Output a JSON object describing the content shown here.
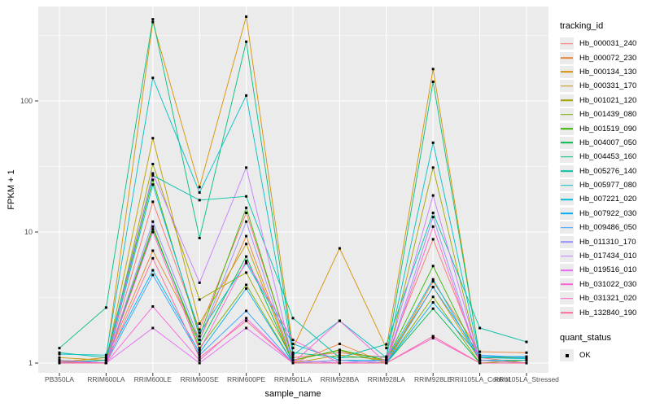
{
  "chart_data": {
    "type": "line",
    "title": "",
    "xlabel": "sample_name",
    "ylabel": "FPKM + 1",
    "y_scale": "log10",
    "ylim": [
      0.93,
      500
    ],
    "y_ticks": [
      1,
      10,
      100
    ],
    "y_minor_ticks": [
      3.162,
      31.62,
      316.2
    ],
    "grid": true,
    "panel_bg": "#EBEBEB",
    "grid_color": "#FFFFFF",
    "tick_color": "#333333",
    "axis_text_color": "#4D4D4D",
    "point_color": "#000000",
    "x_categories": [
      "PB350LA",
      "RRIM600LA",
      "RRIM600LE",
      "RRIM600SE",
      "RRIM600PE",
      "RRIM901LA",
      "RRIM928BA",
      "RRIM928LA",
      "RRIM928LE",
      "RRII105LA_Control",
      "RRII105LA_Stressed"
    ],
    "legend": {
      "title": "tracking_id",
      "position": "right"
    },
    "quant_legend": {
      "title": "quant_status",
      "items": [
        {
          "label": "OK",
          "marker": "black-square"
        }
      ]
    },
    "series": [
      {
        "name": "Hb_000031_240",
        "color": "#F8766D",
        "values": [
          1.05,
          1.0,
          17,
          1.8,
          14,
          1.1,
          1.2,
          1.1,
          8.8,
          1.1,
          1.0
        ]
      },
      {
        "name": "Hb_000072_230",
        "color": "#EA8331",
        "values": [
          1.0,
          1.05,
          7.2,
          1.5,
          9.3,
          1.0,
          1.4,
          1.0,
          4.2,
          1.22,
          1.2
        ]
      },
      {
        "name": "Hb_000134_130",
        "color": "#D89000",
        "values": [
          1.02,
          1.1,
          400,
          22,
          440,
          1.3,
          7.5,
          1.3,
          175,
          1.1,
          1.1
        ]
      },
      {
        "name": "Hb_000331_170",
        "color": "#C09B00",
        "values": [
          1.1,
          1.05,
          52,
          2.0,
          8.1,
          1.0,
          1.15,
          1.05,
          3.8,
          1.05,
          1.05
        ]
      },
      {
        "name": "Hb_001021_120",
        "color": "#A3A500",
        "values": [
          1.05,
          1.0,
          33,
          3.05,
          4.9,
          1.05,
          1.25,
          1.0,
          31,
          1.0,
          1.0
        ]
      },
      {
        "name": "Hb_001439_080",
        "color": "#7CAE00",
        "values": [
          1.0,
          1.0,
          11,
          1.3,
          3.95,
          1.0,
          1.0,
          1.0,
          3.2,
          1.0,
          1.05
        ]
      },
      {
        "name": "Hb_001519_090",
        "color": "#39B600",
        "values": [
          1.02,
          1.05,
          25,
          1.6,
          15.3,
          1.05,
          1.26,
          1.05,
          5.5,
          1.05,
          1.0
        ]
      },
      {
        "name": "Hb_004007_050",
        "color": "#00BB4E",
        "values": [
          1.0,
          1.0,
          10.5,
          1.4,
          6.5,
          1.0,
          1.05,
          1.0,
          2.6,
          1.0,
          1.0
        ]
      },
      {
        "name": "Hb_004453_160",
        "color": "#00BF7D",
        "values": [
          1.3,
          2.65,
          420,
          9.0,
          283,
          1.2,
          1.1,
          1.12,
          140,
          1.12,
          1.1
        ]
      },
      {
        "name": "Hb_005276_140",
        "color": "#00C1A3",
        "values": [
          1.2,
          1.1,
          27,
          17.5,
          18.7,
          2.2,
          1.1,
          1.39,
          14,
          1.85,
          1.45
        ]
      },
      {
        "name": "Hb_005977_080",
        "color": "#00BFC4",
        "values": [
          1.17,
          1.15,
          150,
          20,
          110,
          1.15,
          2.1,
          1.1,
          48,
          1.1,
          1.08
        ]
      },
      {
        "name": "Hb_007221_020",
        "color": "#00BBDA",
        "values": [
          1.05,
          1.0,
          23,
          1.7,
          5.8,
          1.4,
          1.05,
          1.05,
          4.35,
          1.05,
          1.05
        ]
      },
      {
        "name": "Hb_007922_030",
        "color": "#00B0F6",
        "values": [
          1.0,
          1.05,
          5.1,
          1.2,
          3.7,
          1.0,
          1.0,
          1.0,
          2.9,
          1.12,
          1.12
        ]
      },
      {
        "name": "Hb_009486_050",
        "color": "#35A2FF",
        "values": [
          1.0,
          1.0,
          4.7,
          1.15,
          2.5,
          1.0,
          1.0,
          1.0,
          3.8,
          1.15,
          1.1
        ]
      },
      {
        "name": "Hb_011310_170",
        "color": "#9590FF",
        "values": [
          1.0,
          1.0,
          12,
          1.5,
          12,
          1.0,
          1.05,
          1.0,
          13,
          1.0,
          1.0
        ]
      },
      {
        "name": "Hb_017434_010",
        "color": "#C77CFF",
        "values": [
          1.05,
          1.0,
          28,
          4.1,
          31,
          1.05,
          1.0,
          1.05,
          19,
          1.05,
          1.0
        ]
      },
      {
        "name": "Hb_019516_010",
        "color": "#E76BF3",
        "values": [
          1.0,
          1.0,
          1.85,
          1.0,
          1.85,
          1.0,
          1.0,
          1.0,
          1.6,
          1.0,
          1.0
        ]
      },
      {
        "name": "Hb_031022_030",
        "color": "#FA62DB",
        "values": [
          1.0,
          1.0,
          2.7,
          1.05,
          2.2,
          1.0,
          2.1,
          1.0,
          1.55,
          1.0,
          1.0
        ]
      },
      {
        "name": "Hb_031321_020",
        "color": "#FF61CC",
        "values": [
          1.02,
          1.0,
          10,
          1.25,
          6.0,
          1.5,
          1.0,
          1.0,
          11,
          1.0,
          1.0
        ]
      },
      {
        "name": "Hb_132840_190",
        "color": "#FF6A98",
        "values": [
          1.0,
          1.0,
          6.3,
          1.1,
          2.1,
          1.0,
          1.0,
          1.0,
          1.6,
          1.0,
          1.0
        ]
      }
    ]
  }
}
